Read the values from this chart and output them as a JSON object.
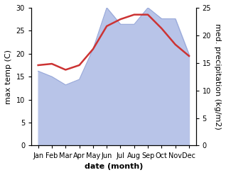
{
  "months": [
    "Jan",
    "Feb",
    "Mar",
    "Apr",
    "May",
    "Jun",
    "Jul",
    "Aug",
    "Sep",
    "Oct",
    "Nov",
    "Dec"
  ],
  "max_temp": [
    17.5,
    17.8,
    16.5,
    17.5,
    21.0,
    26.0,
    27.5,
    28.5,
    28.5,
    25.5,
    22.0,
    19.5
  ],
  "precipitation": [
    13.5,
    12.5,
    11.0,
    12.0,
    17.5,
    25.0,
    22.0,
    22.0,
    25.0,
    23.0,
    23.0,
    16.5
  ],
  "temp_color": "#cc3333",
  "precip_fill_color": "#b8c4e8",
  "precip_line_color": "#9aaada",
  "ylim_left": [
    0,
    30
  ],
  "ylim_right": [
    0,
    25
  ],
  "xlabel": "date (month)",
  "ylabel_left": "max temp (C)",
  "ylabel_right": "med. precipitation (kg/m2)",
  "bg_color": "#ffffff",
  "label_fontsize": 8,
  "tick_fontsize": 7,
  "temp_linewidth": 1.8,
  "precip_linewidth": 0.8
}
